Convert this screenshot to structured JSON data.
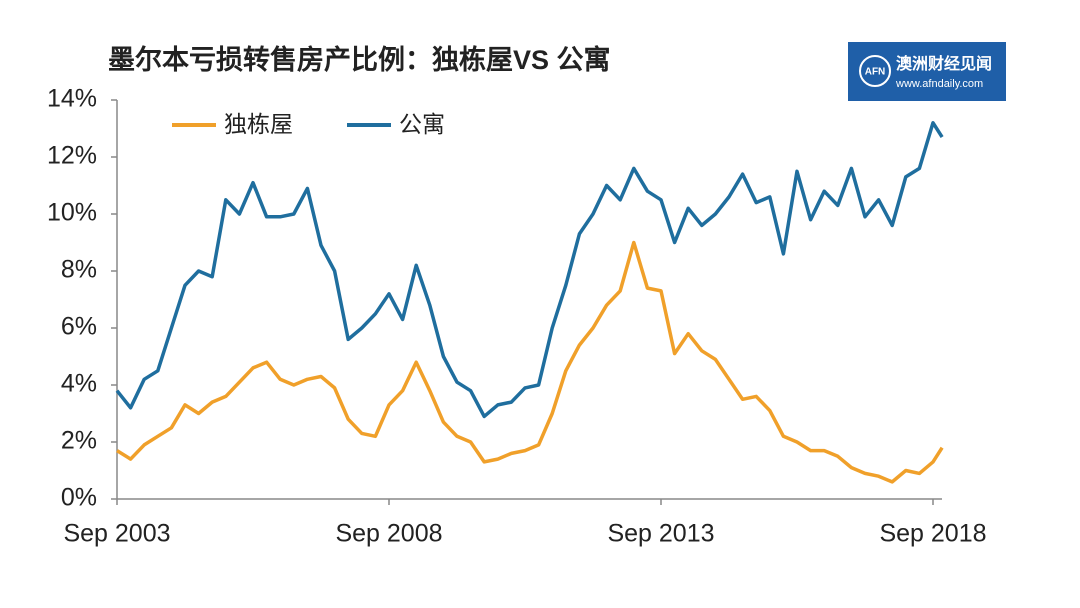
{
  "chart_data": {
    "type": "line",
    "title": "墨尔本亏损转售房产比例：独栋屋VS 公寓",
    "logo": {
      "badge": "AFN",
      "name": "澳洲财经见闻",
      "url": "www.afndaily.com"
    },
    "x": [
      "2003-09",
      "2003-12",
      "2004-03",
      "2004-06",
      "2004-09",
      "2004-12",
      "2005-03",
      "2005-06",
      "2005-09",
      "2005-12",
      "2006-03",
      "2006-06",
      "2006-09",
      "2006-12",
      "2007-03",
      "2007-06",
      "2007-09",
      "2007-12",
      "2008-03",
      "2008-06",
      "2008-09",
      "2008-12",
      "2009-03",
      "2009-06",
      "2009-09",
      "2009-12",
      "2010-03",
      "2010-06",
      "2010-09",
      "2010-12",
      "2011-03",
      "2011-06",
      "2011-09",
      "2011-12",
      "2012-03",
      "2012-06",
      "2012-09",
      "2012-12",
      "2013-03",
      "2013-06",
      "2013-09",
      "2013-12",
      "2014-03",
      "2014-06",
      "2014-09",
      "2014-12",
      "2015-03",
      "2015-06",
      "2015-09",
      "2015-12",
      "2016-03",
      "2016-06",
      "2016-09",
      "2016-12",
      "2017-03",
      "2017-06",
      "2017-09",
      "2017-12",
      "2018-03",
      "2018-06",
      "2018-09",
      "2018-11"
    ],
    "series": [
      {
        "name": "独栋屋",
        "color": "#f0a02a",
        "values": [
          1.7,
          1.4,
          1.9,
          2.2,
          2.5,
          3.3,
          3.0,
          3.4,
          3.6,
          4.1,
          4.6,
          4.8,
          4.2,
          4.0,
          4.2,
          4.3,
          3.9,
          2.8,
          2.3,
          2.2,
          3.3,
          3.8,
          4.8,
          3.8,
          2.7,
          2.2,
          2.0,
          1.3,
          1.4,
          1.6,
          1.7,
          1.9,
          3.0,
          4.5,
          5.4,
          6.0,
          6.8,
          7.3,
          9.0,
          7.4,
          7.3,
          5.1,
          5.8,
          5.2,
          4.9,
          4.2,
          3.5,
          3.6,
          3.1,
          2.2,
          2.0,
          1.7,
          1.7,
          1.5,
          1.1,
          0.9,
          0.8,
          0.6,
          1.0,
          0.9,
          1.3,
          1.8
        ]
      },
      {
        "name": "公寓",
        "color": "#1f6e9e",
        "values": [
          3.8,
          3.2,
          4.2,
          4.5,
          6.0,
          7.5,
          8.0,
          7.8,
          10.5,
          10.0,
          11.1,
          9.9,
          9.9,
          10.0,
          10.9,
          8.9,
          8.0,
          5.6,
          6.0,
          6.5,
          7.2,
          6.3,
          8.2,
          6.8,
          5.0,
          4.1,
          3.8,
          2.9,
          3.3,
          3.4,
          3.9,
          4.0,
          6.0,
          7.5,
          9.3,
          10.0,
          11.0,
          10.5,
          11.6,
          10.8,
          10.5,
          9.0,
          10.2,
          9.6,
          10.0,
          10.6,
          11.4,
          10.4,
          10.6,
          8.6,
          11.5,
          9.8,
          10.8,
          10.3,
          11.6,
          9.9,
          10.5,
          9.6,
          11.3,
          11.6,
          13.2,
          12.7
        ]
      }
    ],
    "xticks": [
      {
        "value": "2003-09",
        "label": "Sep 2003"
      },
      {
        "value": "2008-09",
        "label": "Sep 2008"
      },
      {
        "value": "2013-09",
        "label": "Sep 2013"
      },
      {
        "value": "2018-09",
        "label": "Sep 2018"
      }
    ],
    "ylim": [
      0,
      14
    ],
    "yticks": [
      {
        "value": 0,
        "label": "0%"
      },
      {
        "value": 2,
        "label": "2%"
      },
      {
        "value": 4,
        "label": "4%"
      },
      {
        "value": 6,
        "label": "6%"
      },
      {
        "value": 8,
        "label": "8%"
      },
      {
        "value": 10,
        "label": "10%"
      },
      {
        "value": 12,
        "label": "12%"
      },
      {
        "value": 14,
        "label": "14%"
      }
    ],
    "grid": false
  }
}
